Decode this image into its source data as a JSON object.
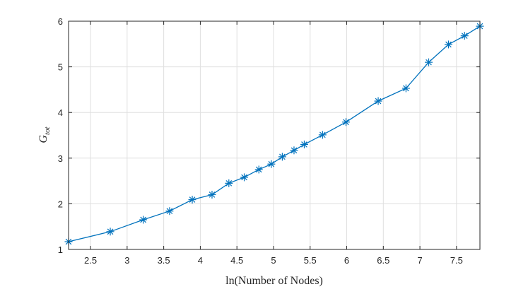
{
  "chart_data": {
    "type": "line",
    "xlabel": "ln(Number of Nodes)",
    "ylabel": {
      "main": "G",
      "sub": "tot"
    },
    "xlim": [
      2.2,
      7.82
    ],
    "ylim": [
      1,
      6
    ],
    "xticks": [
      2.5,
      3,
      3.5,
      4,
      4.5,
      5,
      5.5,
      6,
      6.5,
      7,
      7.5
    ],
    "yticks": [
      1,
      2,
      3,
      4,
      5,
      6
    ],
    "xtick_labels": [
      "2.5",
      "3",
      "3.5",
      "4",
      "4.5",
      "5",
      "5.5",
      "6",
      "6.5",
      "7",
      "7.5"
    ],
    "ytick_labels": [
      "1",
      "2",
      "3",
      "4",
      "5",
      "6"
    ],
    "grid": true,
    "marker": "asterisk",
    "color": "#0072BD",
    "series": [
      {
        "x": [
          2.2,
          2.77,
          3.22,
          3.58,
          3.89,
          4.16,
          4.39,
          4.6,
          4.8,
          4.97,
          5.12,
          5.28,
          5.42,
          5.67,
          5.99,
          6.43,
          6.81,
          7.12,
          7.39,
          7.61,
          7.82
        ],
        "y": [
          1.17,
          1.39,
          1.65,
          1.84,
          2.09,
          2.2,
          2.45,
          2.58,
          2.75,
          2.87,
          3.03,
          3.17,
          3.3,
          3.51,
          3.79,
          4.25,
          4.53,
          5.1,
          5.49,
          5.68,
          5.89
        ]
      }
    ]
  }
}
